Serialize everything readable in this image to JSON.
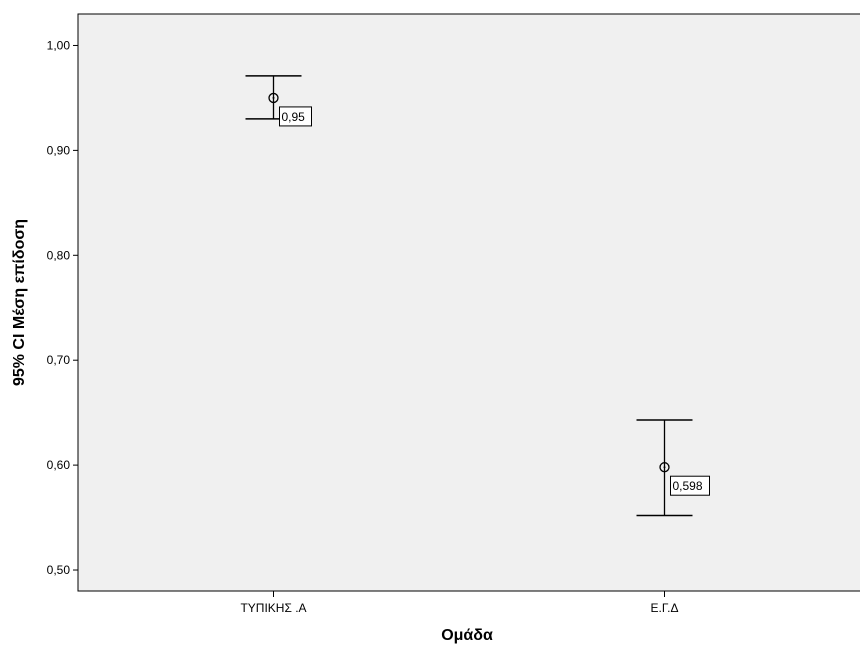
{
  "chart_data": {
    "type": "error-bar",
    "xlabel": "Ομάδα",
    "ylabel": "95% CI Μέση επίδοση",
    "categories": [
      "ΤΥΠΙΚΗΣ .Α",
      "Ε.Γ.Δ"
    ],
    "series": [
      {
        "mean": [
          0.95,
          0.598
        ],
        "ci_lower": [
          0.93,
          0.552
        ],
        "ci_upper": [
          0.971,
          0.643
        ],
        "data_labels": [
          "0,95",
          "0,598"
        ]
      }
    ],
    "ylim": [
      0.48,
      1.03
    ],
    "yticks": [
      0.5,
      0.6,
      0.7,
      0.8,
      0.9,
      1.0
    ],
    "ytick_labels": [
      "0,50",
      "0,60",
      "0,70",
      "0,80",
      "0,90",
      "1,00"
    ],
    "grid": false,
    "legend": "none",
    "colors": {
      "plot_background": "#f0f0f0",
      "frame": "#000000",
      "marks": "#000000"
    }
  }
}
